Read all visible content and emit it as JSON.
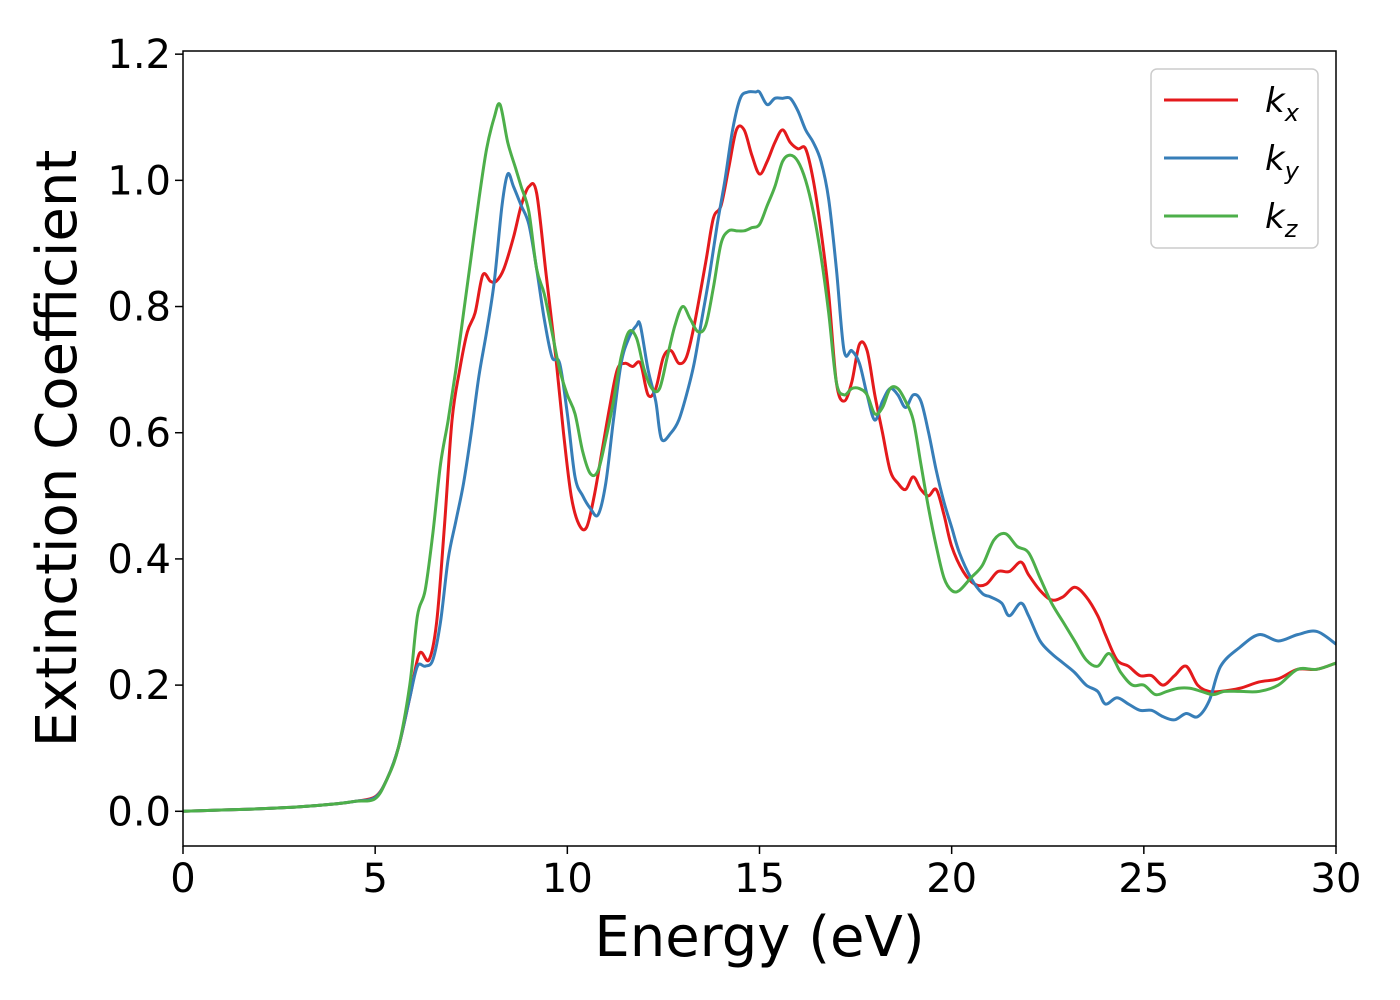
{
  "chart_data": {
    "type": "line",
    "xlabel": "Energy (eV)",
    "ylabel": "Extinction Coefficient",
    "xlim": [
      0,
      30
    ],
    "ylim": [
      -0.055,
      1.205
    ],
    "xticks": [
      0,
      5,
      10,
      15,
      20,
      25,
      30
    ],
    "xtick_labels": [
      "0",
      "5",
      "10",
      "15",
      "20",
      "25",
      "30"
    ],
    "yticks": [
      0.0,
      0.2,
      0.4,
      0.6,
      0.8,
      1.0,
      1.2
    ],
    "ytick_labels": [
      "0.0",
      "0.2",
      "0.4",
      "0.6",
      "0.8",
      "1.0",
      "1.2"
    ],
    "grid": false,
    "legend_position": "top-right",
    "series": [
      {
        "name": "k",
        "subscript": "x",
        "color": "#e41a1c",
        "x": [
          0,
          1,
          2,
          3,
          4,
          4.5,
          5,
          5.3,
          5.6,
          5.9,
          6.15,
          6.4,
          6.6,
          6.8,
          7.0,
          7.2,
          7.4,
          7.6,
          7.8,
          8.0,
          8.15,
          8.35,
          8.6,
          8.8,
          9.0,
          9.2,
          9.45,
          9.7,
          9.9,
          10.1,
          10.3,
          10.5,
          10.7,
          10.9,
          11.1,
          11.3,
          11.5,
          11.7,
          11.9,
          12.1,
          12.3,
          12.5,
          12.7,
          12.9,
          13.1,
          13.3,
          13.6,
          13.8,
          14.0,
          14.2,
          14.4,
          14.6,
          14.8,
          15.0,
          15.2,
          15.4,
          15.6,
          15.8,
          16.0,
          16.2,
          16.4,
          16.6,
          16.8,
          17.0,
          17.2,
          17.4,
          17.6,
          17.8,
          18.0,
          18.2,
          18.4,
          18.6,
          18.8,
          19.0,
          19.2,
          19.4,
          19.6,
          19.8,
          20.0,
          20.3,
          20.6,
          20.9,
          21.2,
          21.5,
          21.8,
          22.0,
          22.3,
          22.6,
          22.9,
          23.2,
          23.5,
          23.8,
          24.0,
          24.3,
          24.6,
          24.9,
          25.2,
          25.5,
          25.8,
          26.1,
          26.4,
          26.7,
          27.0,
          27.5,
          28.0,
          28.5,
          29.0,
          29.5,
          30.0
        ],
        "y": [
          0.0,
          0.002,
          0.004,
          0.007,
          0.012,
          0.016,
          0.023,
          0.05,
          0.1,
          0.18,
          0.25,
          0.24,
          0.3,
          0.45,
          0.62,
          0.7,
          0.76,
          0.79,
          0.85,
          0.84,
          0.84,
          0.86,
          0.91,
          0.96,
          0.99,
          0.98,
          0.85,
          0.72,
          0.6,
          0.5,
          0.455,
          0.45,
          0.5,
          0.57,
          0.64,
          0.7,
          0.71,
          0.705,
          0.71,
          0.66,
          0.67,
          0.72,
          0.73,
          0.71,
          0.72,
          0.77,
          0.87,
          0.94,
          0.96,
          1.02,
          1.08,
          1.08,
          1.04,
          1.01,
          1.03,
          1.06,
          1.08,
          1.06,
          1.05,
          1.05,
          1.0,
          0.92,
          0.82,
          0.68,
          0.65,
          0.68,
          0.74,
          0.73,
          0.66,
          0.6,
          0.54,
          0.52,
          0.51,
          0.53,
          0.51,
          0.5,
          0.51,
          0.47,
          0.42,
          0.38,
          0.36,
          0.36,
          0.38,
          0.38,
          0.395,
          0.375,
          0.35,
          0.335,
          0.34,
          0.355,
          0.34,
          0.31,
          0.28,
          0.24,
          0.23,
          0.215,
          0.215,
          0.2,
          0.215,
          0.23,
          0.2,
          0.19,
          0.19,
          0.195,
          0.205,
          0.21,
          0.225,
          0.225,
          0.235
        ]
      },
      {
        "name": "k",
        "subscript": "y",
        "color": "#377eb8",
        "x": [
          0,
          1,
          2,
          3,
          4,
          4.5,
          5,
          5.3,
          5.6,
          5.9,
          6.1,
          6.3,
          6.5,
          6.7,
          6.9,
          7.1,
          7.3,
          7.5,
          7.7,
          7.9,
          8.1,
          8.3,
          8.45,
          8.6,
          8.8,
          9.0,
          9.2,
          9.4,
          9.6,
          9.8,
          10.0,
          10.2,
          10.4,
          10.6,
          10.8,
          11.0,
          11.2,
          11.4,
          11.6,
          11.8,
          11.9,
          12.1,
          12.3,
          12.45,
          12.7,
          12.9,
          13.1,
          13.3,
          13.5,
          13.7,
          13.9,
          14.1,
          14.3,
          14.5,
          14.7,
          14.9,
          15.0,
          15.2,
          15.4,
          15.6,
          15.8,
          16.0,
          16.2,
          16.4,
          16.6,
          16.8,
          17.0,
          17.2,
          17.4,
          17.6,
          17.8,
          18.0,
          18.2,
          18.4,
          18.6,
          18.8,
          19.0,
          19.2,
          19.4,
          19.6,
          19.8,
          20.0,
          20.2,
          20.5,
          20.8,
          21.0,
          21.3,
          21.5,
          21.8,
          22.0,
          22.3,
          22.6,
          22.9,
          23.2,
          23.5,
          23.8,
          24.0,
          24.3,
          24.6,
          24.9,
          25.2,
          25.5,
          25.8,
          26.1,
          26.4,
          26.7,
          27.0,
          27.5,
          28.0,
          28.5,
          29.0,
          29.5,
          30.0
        ],
        "y": [
          0.0,
          0.002,
          0.004,
          0.007,
          0.012,
          0.016,
          0.022,
          0.05,
          0.1,
          0.18,
          0.23,
          0.23,
          0.24,
          0.3,
          0.4,
          0.46,
          0.52,
          0.6,
          0.69,
          0.76,
          0.84,
          0.96,
          1.01,
          0.99,
          0.96,
          0.93,
          0.86,
          0.78,
          0.72,
          0.71,
          0.63,
          0.53,
          0.5,
          0.48,
          0.47,
          0.52,
          0.62,
          0.71,
          0.75,
          0.77,
          0.77,
          0.7,
          0.65,
          0.59,
          0.6,
          0.62,
          0.66,
          0.71,
          0.78,
          0.85,
          0.93,
          1.0,
          1.08,
          1.13,
          1.14,
          1.14,
          1.14,
          1.12,
          1.13,
          1.13,
          1.13,
          1.11,
          1.08,
          1.06,
          1.03,
          0.97,
          0.86,
          0.73,
          0.73,
          0.71,
          0.66,
          0.62,
          0.65,
          0.67,
          0.66,
          0.64,
          0.66,
          0.65,
          0.6,
          0.54,
          0.49,
          0.45,
          0.41,
          0.37,
          0.345,
          0.34,
          0.33,
          0.31,
          0.33,
          0.31,
          0.27,
          0.25,
          0.235,
          0.22,
          0.2,
          0.19,
          0.17,
          0.18,
          0.17,
          0.16,
          0.16,
          0.15,
          0.145,
          0.155,
          0.15,
          0.175,
          0.23,
          0.26,
          0.28,
          0.27,
          0.28,
          0.285,
          0.265
        ]
      },
      {
        "name": "k",
        "subscript": "z",
        "color": "#4daf4a",
        "x": [
          0,
          1,
          2,
          3,
          4,
          4.5,
          5,
          5.3,
          5.6,
          5.9,
          6.1,
          6.3,
          6.5,
          6.7,
          6.9,
          7.1,
          7.3,
          7.5,
          7.7,
          7.9,
          8.1,
          8.25,
          8.45,
          8.65,
          8.8,
          9.0,
          9.2,
          9.4,
          9.6,
          9.8,
          10.0,
          10.2,
          10.4,
          10.6,
          10.8,
          11.0,
          11.2,
          11.4,
          11.6,
          11.8,
          12.0,
          12.2,
          12.4,
          12.6,
          12.8,
          13.0,
          13.2,
          13.4,
          13.6,
          13.8,
          14.0,
          14.2,
          14.4,
          14.6,
          14.8,
          15.0,
          15.2,
          15.4,
          15.6,
          15.8,
          16.0,
          16.2,
          16.4,
          16.6,
          16.8,
          17.0,
          17.2,
          17.4,
          17.6,
          17.8,
          18.0,
          18.2,
          18.4,
          18.6,
          18.8,
          19.0,
          19.2,
          19.4,
          19.6,
          19.8,
          20.0,
          20.2,
          20.5,
          20.8,
          21.1,
          21.4,
          21.7,
          22.0,
          22.3,
          22.6,
          22.9,
          23.2,
          23.5,
          23.8,
          24.1,
          24.4,
          24.7,
          25.0,
          25.3,
          25.6,
          25.9,
          26.2,
          26.5,
          26.8,
          27.1,
          27.5,
          28.0,
          28.5,
          29.0,
          29.5,
          30.0
        ],
        "y": [
          0.0,
          0.002,
          0.004,
          0.007,
          0.012,
          0.016,
          0.02,
          0.05,
          0.1,
          0.2,
          0.31,
          0.35,
          0.44,
          0.55,
          0.62,
          0.7,
          0.79,
          0.88,
          0.97,
          1.05,
          1.1,
          1.12,
          1.06,
          1.02,
          0.99,
          0.95,
          0.86,
          0.82,
          0.76,
          0.7,
          0.66,
          0.63,
          0.57,
          0.535,
          0.54,
          0.59,
          0.65,
          0.72,
          0.76,
          0.75,
          0.7,
          0.67,
          0.67,
          0.72,
          0.77,
          0.8,
          0.78,
          0.76,
          0.77,
          0.83,
          0.9,
          0.92,
          0.92,
          0.92,
          0.925,
          0.93,
          0.96,
          0.99,
          1.03,
          1.04,
          1.03,
          1.0,
          0.95,
          0.88,
          0.79,
          0.68,
          0.66,
          0.67,
          0.67,
          0.66,
          0.63,
          0.64,
          0.67,
          0.67,
          0.65,
          0.62,
          0.55,
          0.48,
          0.42,
          0.37,
          0.35,
          0.35,
          0.37,
          0.39,
          0.43,
          0.44,
          0.42,
          0.41,
          0.37,
          0.33,
          0.3,
          0.27,
          0.24,
          0.23,
          0.25,
          0.22,
          0.2,
          0.2,
          0.185,
          0.19,
          0.195,
          0.195,
          0.19,
          0.185,
          0.19,
          0.19,
          0.19,
          0.2,
          0.225,
          0.225,
          0.235
        ]
      }
    ]
  }
}
